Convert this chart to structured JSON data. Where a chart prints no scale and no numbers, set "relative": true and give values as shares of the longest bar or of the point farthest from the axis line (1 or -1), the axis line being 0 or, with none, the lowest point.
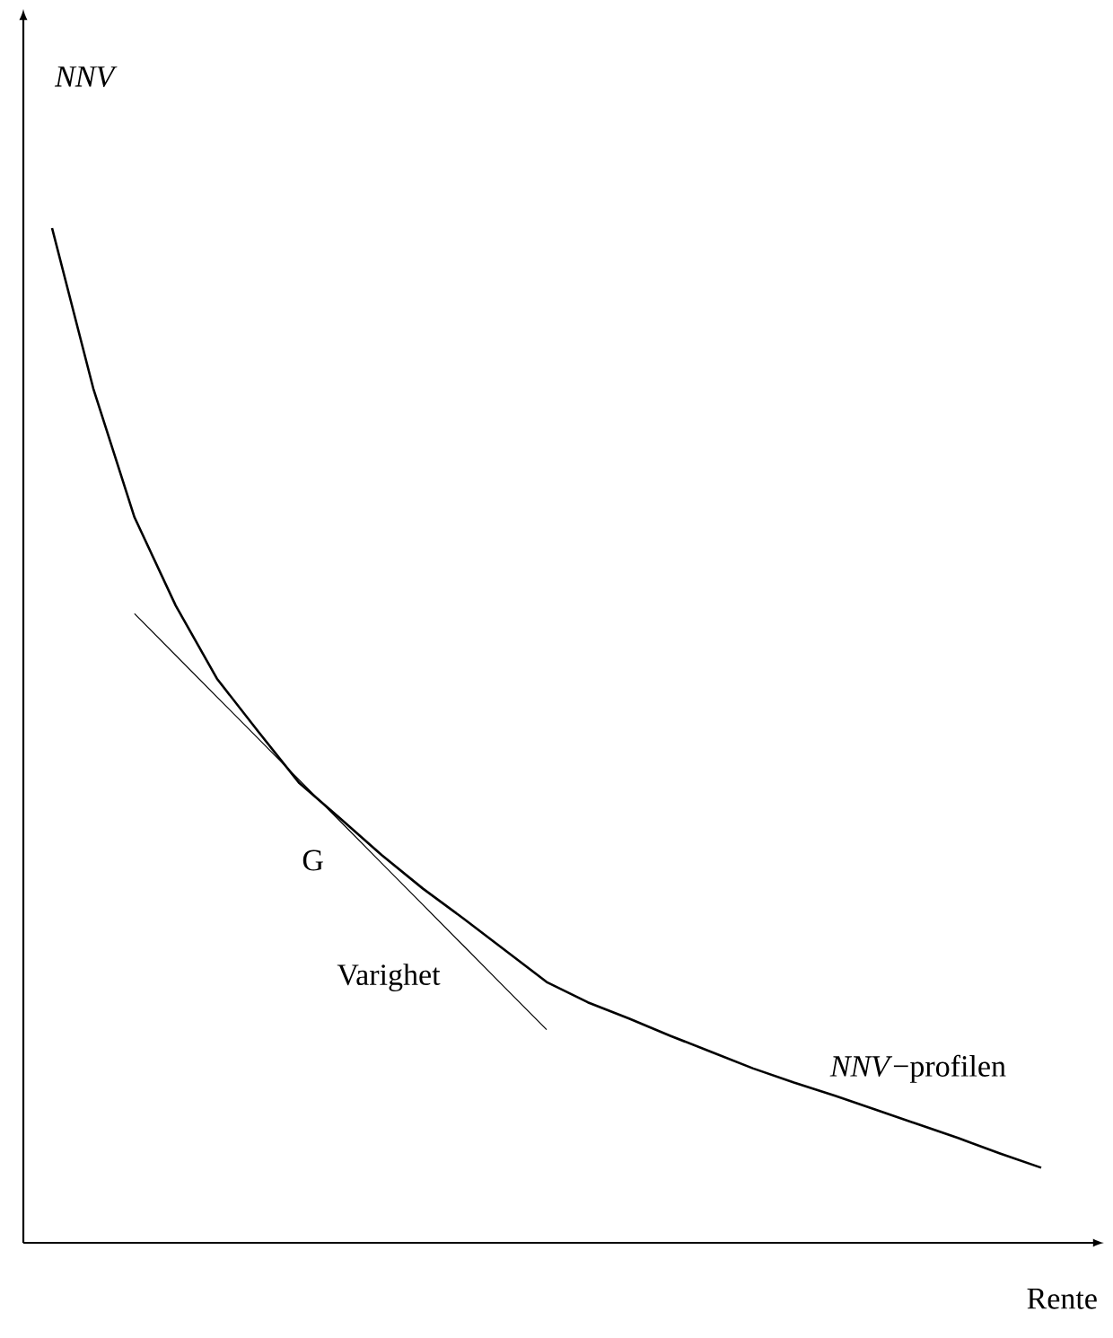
{
  "chart_data": {
    "type": "line",
    "relative": true,
    "xlabel": "Rente",
    "categories": [
      null,
      null,
      null,
      null,
      null,
      null,
      null,
      null,
      null,
      null,
      null,
      null,
      null,
      null,
      null,
      null,
      null,
      null,
      null,
      null,
      null,
      null,
      null,
      null,
      null
    ],
    "series": [
      {
        "color": "#000000",
        "values": [
          1.0,
          0.842,
          0.715,
          0.628,
          0.556,
          0.504,
          0.453,
          0.418,
          0.382,
          0.349,
          0.319,
          0.288,
          0.257,
          0.237,
          0.221,
          0.204,
          0.188,
          0.172,
          0.158,
          0.145,
          0.131,
          0.117,
          0.103,
          0.088,
          0.074
        ]
      },
      {
        "color": "#000000",
        "values": [
          null,
          null,
          0.62,
          0.579,
          0.538,
          0.497,
          0.456,
          0.415,
          0.374,
          0.333,
          0.292,
          0.251,
          0.21,
          null,
          null,
          null,
          null,
          null,
          null,
          null,
          null,
          null,
          null,
          null,
          null
        ]
      }
    ],
    "annotations": [
      "*NNV*",
      "G",
      "Varighet",
      "*NNV*−profilen"
    ]
  }
}
